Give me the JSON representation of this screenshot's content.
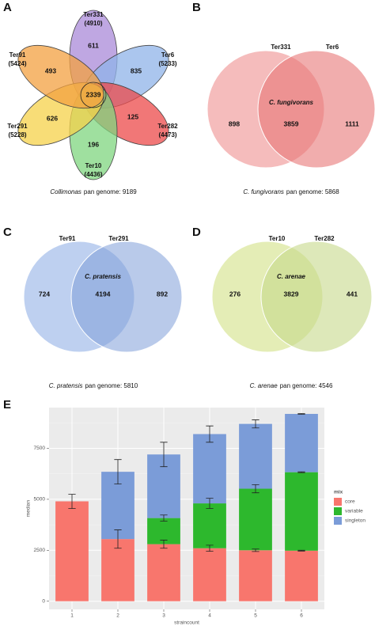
{
  "panels": [
    {
      "letter": "A",
      "sets": [
        {
          "name": "Ter331",
          "count": "(4910)"
        },
        {
          "name": "Ter6",
          "count": "(5233)"
        },
        {
          "name": "Ter282",
          "count": "(4473)"
        },
        {
          "name": "Ter10",
          "count": "(4436)"
        },
        {
          "name": "Ter291",
          "count": "(5228)"
        },
        {
          "name": "Ter91",
          "count": "(5424)"
        }
      ],
      "regions": [
        "611",
        "835",
        "125",
        "196",
        "626",
        "493",
        "2339"
      ],
      "caption": {
        "species": "Collimonas",
        "text": "pan genome: 9189"
      }
    },
    {
      "letter": "B",
      "sets": [
        {
          "name": "Ter331"
        },
        {
          "name": "Ter6"
        }
      ],
      "overlap_name": "C. fungivorans",
      "regions": [
        "898",
        "3859",
        "1111"
      ],
      "caption": {
        "species": "C. fungivorans",
        "text": "pan genome: 5868"
      }
    },
    {
      "letter": "C",
      "sets": [
        {
          "name": "Ter91"
        },
        {
          "name": "Ter291"
        }
      ],
      "overlap_name": "C. pratensis",
      "regions": [
        "724",
        "4194",
        "892"
      ],
      "caption": {
        "species": "C. pratensis",
        "text": "pan genome: 5810"
      }
    },
    {
      "letter": "D",
      "sets": [
        {
          "name": "Ter10"
        },
        {
          "name": "Ter282"
        }
      ],
      "overlap_name": "C. arenae",
      "regions": [
        "276",
        "3829",
        "441"
      ],
      "caption": {
        "species": "C. arenae",
        "text": "pan genome: 4546"
      }
    }
  ],
  "chart_data": {
    "type": "stacked_bar",
    "panel_letter": "E",
    "x_label": "straincount",
    "y_label": "median",
    "legend_title": "mix",
    "categories": [
      "1",
      "2",
      "3",
      "4",
      "5",
      "6"
    ],
    "series": [
      {
        "name": "core",
        "color": "#f8766d",
        "values": [
          4900,
          3050,
          2800,
          2600,
          2500,
          2480
        ],
        "errors": [
          350,
          450,
          200,
          150,
          60,
          20
        ]
      },
      {
        "name": "variable",
        "color": "#2db82d",
        "values": [
          0,
          0,
          1280,
          2200,
          3020,
          3850
        ],
        "errors": [
          null,
          null,
          150,
          250,
          200,
          20
        ]
      },
      {
        "name": "singleton",
        "color": "#7b9cd8",
        "values": [
          0,
          3300,
          3120,
          3400,
          3180,
          2860
        ],
        "errors": [
          null,
          600,
          600,
          400,
          200,
          20
        ]
      }
    ],
    "ylim": [
      -400,
      9500
    ],
    "yticks": [
      0,
      2500,
      5000,
      7500
    ],
    "minor_yticks": [
      1250,
      3750,
      6250,
      8750
    ],
    "grid": true,
    "legend": "right"
  }
}
